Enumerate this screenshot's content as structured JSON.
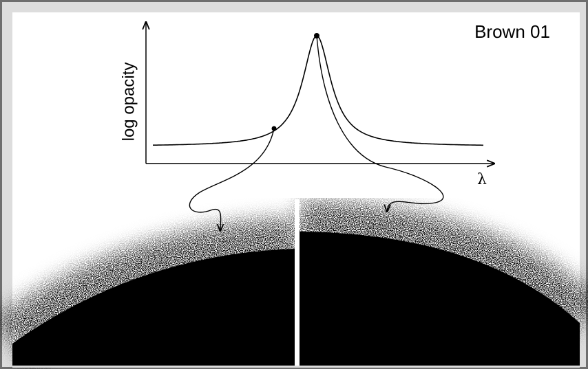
{
  "label": "Brown 01",
  "y_axis_label": "log opacity",
  "x_axis_label": "λ"
}
